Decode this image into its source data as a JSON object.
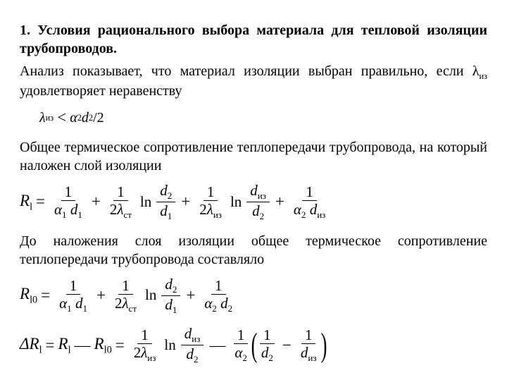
{
  "title": "1. Условия рационального выбора материала для тепловой изоляции трубопроводов.",
  "para1": "Анализ показывает, что материал изоляции выбран правильно, если λ",
  "para1_sub": "из",
  "para1_tail": " удовлетворяет неравенству",
  "ineq": {
    "lhs": "λ",
    "lhs_sub": "из",
    "lt": "<",
    "frac_num_a": "α",
    "frac_num_a_sub": "2",
    "frac_num_b": "d",
    "frac_num_b_sub": "2",
    "slash": "/",
    "two": "2"
  },
  "para2": "Общее термическое сопротивление теплопередачи трубопровода, на который наложен слой изоляции",
  "eqRl": {
    "lhs": "R",
    "lhs_sub": "l",
    "eq": "=",
    "one": "1",
    "plus": "+",
    "ln": "ln",
    "a1": "α",
    "a1s": "1",
    "d1": "d",
    "d1s": "1",
    "two": "2",
    "lam_st": "λ",
    "lam_st_s": "ст",
    "d2": "d",
    "d2s": "2",
    "lam_iz": "λ",
    "lam_iz_s": "из",
    "diz": "d",
    "diz_s": "из",
    "a2": "α",
    "a2s": "2"
  },
  "para3": "До наложения слоя изоляции общее термическое сопротивление теплопередачи трубопровода составляло",
  "eqRl0": {
    "lhs": "R",
    "lhs_sub": "l0",
    "eq": "=",
    "one": "1",
    "plus": "+",
    "ln": "ln",
    "a1": "α",
    "a1s": "1",
    "d1": "d",
    "d1s": "1",
    "two": "2",
    "lam_st": "λ",
    "lam_st_s": "ст",
    "d2": "d",
    "d2s": "2",
    "a2": "α",
    "a2s": "2"
  },
  "eqDR": {
    "delta": "Δ",
    "R": "R",
    "ls": "l",
    "l0s": "l0",
    "eq": "=",
    "minus": "—",
    "minus2": "−",
    "one": "1",
    "two": "2",
    "ln": "ln",
    "lam_iz": "λ",
    "lam_iz_s": "из",
    "diz": "d",
    "diz_s": "из",
    "d2": "d",
    "d2s": "2",
    "a2": "α",
    "a2s": "2"
  }
}
